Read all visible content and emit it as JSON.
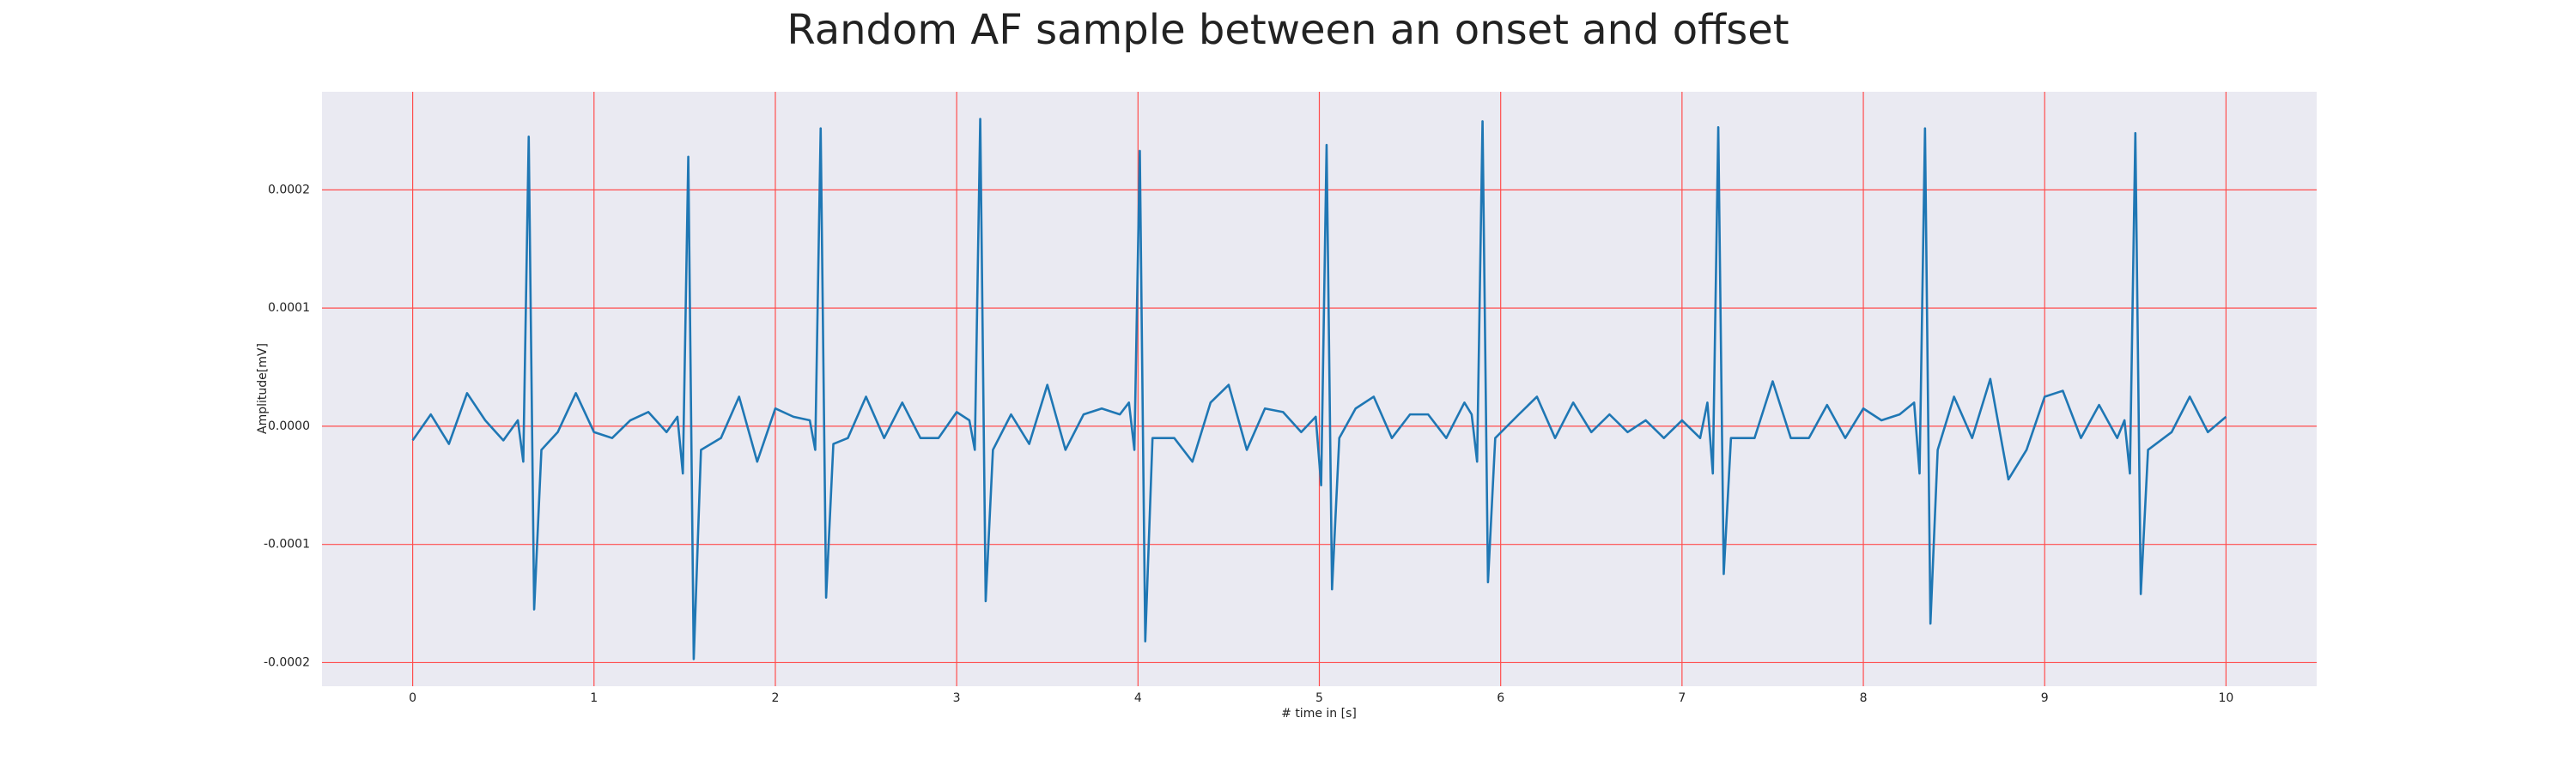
{
  "chart_data": {
    "type": "line",
    "title": "Random AF sample between an onset and offset",
    "xlabel": "# time in [s]",
    "ylabel": "Amplitude[mV]",
    "xlim": [
      -0.5,
      10.5
    ],
    "ylim": [
      -0.00022,
      0.000283
    ],
    "xticks": [
      0,
      1,
      2,
      3,
      4,
      5,
      6,
      7,
      8,
      9,
      10
    ],
    "yticks": [
      -0.0002,
      -0.0001,
      {
        "value": 0,
        "label": "0.0000"
      },
      0.0001,
      0.0002
    ],
    "grid": true,
    "grid_color": "#ff4d4d",
    "background": "#eaeaf2",
    "series": [
      {
        "color": "#1f77b4",
        "x": [
          0.0,
          0.1,
          0.2,
          0.3,
          0.4,
          0.5,
          0.58,
          0.61,
          0.64,
          0.67,
          0.71,
          0.8,
          0.9,
          1.0,
          1.1,
          1.2,
          1.3,
          1.4,
          1.46,
          1.49,
          1.52,
          1.55,
          1.59,
          1.7,
          1.8,
          1.9,
          2.0,
          2.1,
          2.19,
          2.22,
          2.25,
          2.28,
          2.32,
          2.4,
          2.5,
          2.6,
          2.7,
          2.8,
          2.9,
          3.0,
          3.07,
          3.1,
          3.13,
          3.16,
          3.2,
          3.3,
          3.4,
          3.5,
          3.6,
          3.7,
          3.8,
          3.9,
          3.95,
          3.98,
          4.01,
          4.04,
          4.08,
          4.2,
          4.3,
          4.4,
          4.5,
          4.6,
          4.7,
          4.8,
          4.9,
          4.98,
          5.01,
          5.04,
          5.07,
          5.11,
          5.2,
          5.3,
          5.4,
          5.5,
          5.6,
          5.7,
          5.8,
          5.84,
          5.87,
          5.9,
          5.93,
          5.97,
          6.1,
          6.2,
          6.3,
          6.4,
          6.5,
          6.6,
          6.7,
          6.8,
          6.9,
          7.0,
          7.1,
          7.14,
          7.17,
          7.2,
          7.23,
          7.27,
          7.4,
          7.5,
          7.6,
          7.7,
          7.8,
          7.9,
          8.0,
          8.1,
          8.2,
          8.28,
          8.31,
          8.34,
          8.37,
          8.41,
          8.5,
          8.6,
          8.7,
          8.8,
          8.9,
          9.0,
          9.1,
          9.2,
          9.3,
          9.4,
          9.44,
          9.47,
          9.5,
          9.53,
          9.57,
          9.7,
          9.8,
          9.9,
          10.0
        ],
        "values": [
          -1.2e-05,
          1e-05,
          -1.5e-05,
          2.8e-05,
          5e-06,
          -1.2e-05,
          5e-06,
          -3e-05,
          0.000245,
          -0.000155,
          -2e-05,
          -5e-06,
          2.8e-05,
          -5e-06,
          -1e-05,
          5e-06,
          1.2e-05,
          -5e-06,
          8e-06,
          -4e-05,
          0.000228,
          -0.000197,
          -2e-05,
          -1e-05,
          2.5e-05,
          -3e-05,
          1.5e-05,
          8e-06,
          5e-06,
          -2e-05,
          0.000252,
          -0.000145,
          -1.5e-05,
          -1e-05,
          2.5e-05,
          -1e-05,
          2e-05,
          -1e-05,
          -1e-05,
          1.2e-05,
          5e-06,
          -2e-05,
          0.00026,
          -0.000148,
          -2e-05,
          1e-05,
          -1.5e-05,
          3.5e-05,
          -2e-05,
          1e-05,
          1.5e-05,
          1e-05,
          2e-05,
          -2e-05,
          0.000233,
          -0.000182,
          -1e-05,
          -1e-05,
          -3e-05,
          2e-05,
          3.5e-05,
          -2e-05,
          1.5e-05,
          1.2e-05,
          -5e-06,
          8e-06,
          -5e-05,
          0.000238,
          -0.000138,
          -1e-05,
          1.5e-05,
          2.5e-05,
          -1e-05,
          1e-05,
          1e-05,
          -1e-05,
          2e-05,
          1e-05,
          -3e-05,
          0.000258,
          -0.000132,
          -1e-05,
          1e-05,
          2.5e-05,
          -1e-05,
          2e-05,
          -5e-06,
          1e-05,
          -5e-06,
          5e-06,
          -1e-05,
          5e-06,
          -1e-05,
          2e-05,
          -4e-05,
          0.000253,
          -0.000125,
          -1e-05,
          -1e-05,
          3.8e-05,
          -1e-05,
          -1e-05,
          1.8e-05,
          -1e-05,
          1.5e-05,
          5e-06,
          1e-05,
          2e-05,
          -4e-05,
          0.000252,
          -0.000167,
          -2e-05,
          2.5e-05,
          -1e-05,
          4e-05,
          -4.5e-05,
          -2e-05,
          2.5e-05,
          3e-05,
          -1e-05,
          1.8e-05,
          -1e-05,
          5e-06,
          -4e-05,
          0.000248,
          -0.000142,
          -2e-05,
          -5e-06,
          2.5e-05,
          -5e-06,
          8e-06
        ]
      }
    ]
  }
}
